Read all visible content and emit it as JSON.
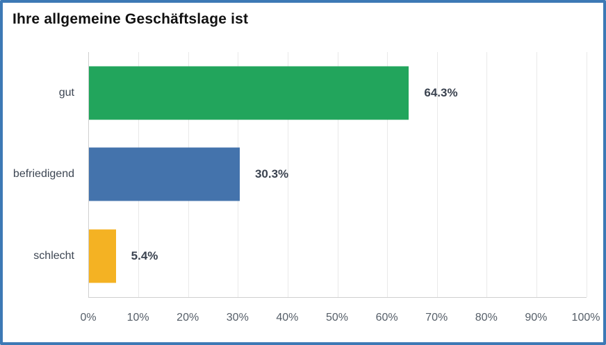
{
  "chart_data": {
    "type": "bar",
    "orientation": "horizontal",
    "title": "Ihre allgemeine Geschäftslage ist",
    "categories": [
      "gut",
      "befriedigend",
      "schlecht"
    ],
    "values": [
      64.3,
      30.3,
      5.4
    ],
    "value_labels": [
      "64.3%",
      "30.3%",
      "5.4%"
    ],
    "series_colors": [
      "#22a55c",
      "#4473ac",
      "#f4b223"
    ],
    "xlabel": "",
    "ylabel": "",
    "xlim": [
      0,
      100
    ],
    "x_tick_labels": [
      "0%",
      "10%",
      "20%",
      "30%",
      "40%",
      "50%",
      "60%",
      "70%",
      "80%",
      "90%",
      "100%"
    ],
    "grid": true,
    "legend": false
  },
  "colors": {
    "card_border": "#3d79b5",
    "grid_line": "#e9e9e9",
    "axis_line": "#cfcfcf",
    "category_text": "#3d4653",
    "value_text": "#3b4350",
    "tick_text": "#555e68",
    "title_text": "#111111"
  }
}
